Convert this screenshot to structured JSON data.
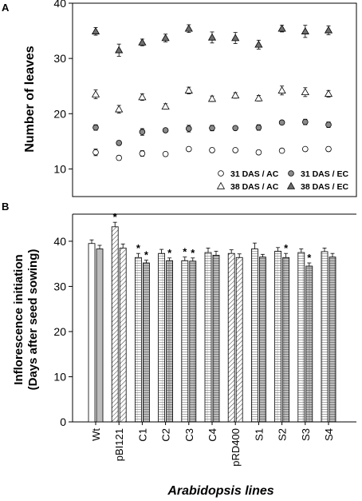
{
  "chart_data": [
    {
      "panel": "A",
      "type": "scatter",
      "ylabel": "Number of leaves",
      "ylim": [
        5,
        40
      ],
      "yticks": [
        10,
        20,
        30,
        40
      ],
      "x": [
        1,
        2,
        3,
        4,
        5,
        6,
        7,
        8,
        9,
        10,
        11
      ],
      "series": [
        {
          "name": "31 DAS / AC",
          "marker": "circle-open",
          "values": [
            13.0,
            12.0,
            12.8,
            12.7,
            13.6,
            13.4,
            13.4,
            13.0,
            13.3,
            13.6,
            13.6
          ],
          "errors": [
            0.6,
            0.4,
            0.5,
            0.3,
            0.3,
            0.4,
            0.3,
            0.3,
            0.3,
            0.3,
            0.4
          ]
        },
        {
          "name": "31 DAS / EC",
          "marker": "circle-filled",
          "values": [
            17.5,
            14.7,
            16.7,
            17.0,
            17.3,
            17.4,
            17.4,
            17.5,
            18.4,
            18.5,
            18.0
          ],
          "errors": [
            0.5,
            0.4,
            0.6,
            0.3,
            0.6,
            0.5,
            0.3,
            0.5,
            0.3,
            0.5,
            0.5
          ]
        },
        {
          "name": "38 DAS / AC",
          "marker": "triangle-open",
          "values": [
            23.5,
            20.8,
            23.0,
            21.3,
            24.2,
            22.7,
            23.3,
            22.8,
            24.2,
            23.9,
            23.6
          ],
          "errors": [
            0.8,
            0.7,
            0.6,
            0.5,
            0.6,
            0.5,
            0.5,
            0.5,
            0.8,
            0.8,
            0.6
          ]
        },
        {
          "name": "38 DAS / EC",
          "marker": "triangle-filled",
          "values": [
            34.9,
            31.5,
            32.9,
            33.7,
            35.4,
            33.8,
            33.7,
            32.5,
            35.4,
            34.9,
            35.1
          ],
          "errors": [
            0.7,
            1.1,
            0.6,
            0.7,
            0.7,
            1.0,
            1.0,
            0.8,
            0.6,
            1.1,
            0.8
          ]
        }
      ]
    },
    {
      "panel": "B",
      "type": "bar",
      "xlabel": "Arabidopsis lines",
      "ylabel": "Inflorescence initiation",
      "ylabel2": "(Days after seed sowing)",
      "ylim": [
        0,
        46
      ],
      "yticks": [
        0,
        10,
        20,
        30,
        40
      ],
      "categories": [
        "Wt",
        "pBI121",
        "C1",
        "C2",
        "C3",
        "C4",
        "pRD400",
        "S1",
        "S2",
        "S3",
        "S4"
      ],
      "series": [
        {
          "name": "AC",
          "values": [
            39.5,
            43.2,
            36.4,
            37.3,
            35.7,
            37.5,
            37.3,
            38.3,
            37.8,
            37.5,
            37.7
          ],
          "errors": [
            0.8,
            1.0,
            0.9,
            0.9,
            0.8,
            1.0,
            0.8,
            1.3,
            0.8,
            0.8,
            0.8
          ],
          "marks": [
            "",
            "*",
            "*",
            "",
            "*",
            "",
            "",
            "",
            "",
            "",
            ""
          ]
        },
        {
          "name": "EC",
          "values": [
            38.3,
            38.5,
            35.2,
            35.7,
            35.6,
            36.9,
            36.4,
            36.5,
            36.4,
            34.5,
            36.5
          ],
          "errors": [
            0.8,
            0.9,
            0.6,
            0.6,
            0.7,
            0.9,
            0.8,
            0.6,
            0.9,
            0.7,
            0.8
          ],
          "marks": [
            "",
            "",
            "*",
            "*",
            "*",
            "",
            "",
            "",
            "*",
            "*",
            ""
          ]
        }
      ]
    }
  ],
  "labels": {
    "panel_a": "A",
    "panel_b": "B"
  },
  "colors": {
    "bar_fill_ac": "#ffffff",
    "bar_fill_ec": "#bdbdbd",
    "triangle_filled": "#6f6f6f",
    "circle_filled": "#8a8a8a",
    "axis": "#000000"
  }
}
